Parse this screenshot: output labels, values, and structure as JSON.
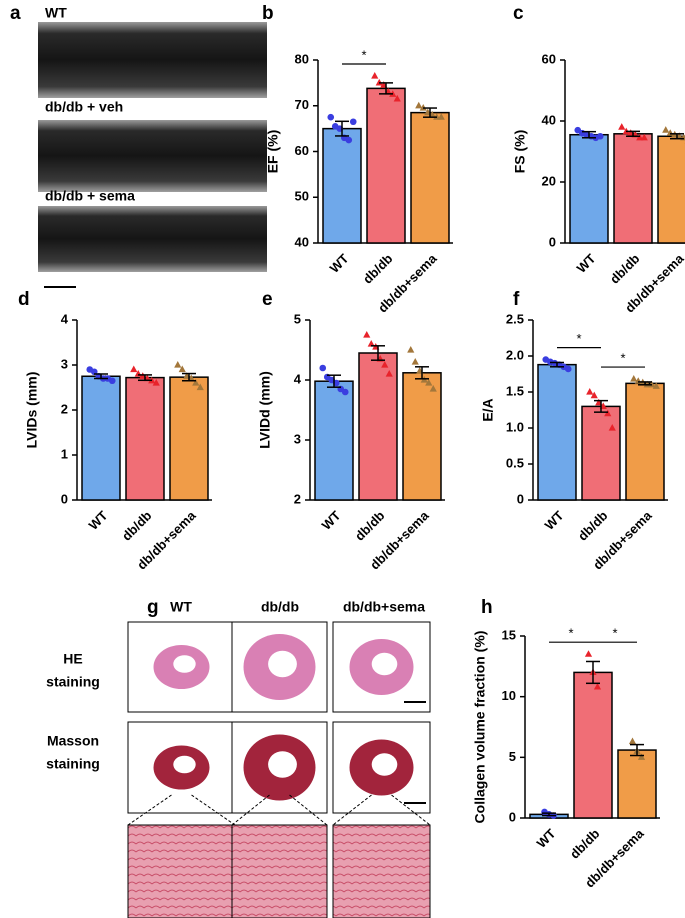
{
  "panel_a": {
    "letter": "a",
    "labels": [
      "WT",
      "db/db + veh",
      "db/db + sema"
    ]
  },
  "panel_g": {
    "letter": "g",
    "columns": [
      "WT",
      "db/db",
      "db/db+sema"
    ],
    "rows": [
      [
        "HE",
        "staining"
      ],
      [
        "Masson",
        "staining"
      ]
    ]
  },
  "chart_data": [
    {
      "type": "bar",
      "panel": "b",
      "ylabel": "EF (%)",
      "categories": [
        "WT",
        "db/db",
        "db/db+sema"
      ],
      "values": [
        65,
        73.8,
        68.5
      ],
      "errors": [
        1.6,
        1.2,
        1
      ],
      "points": [
        [
          67.5,
          65.5,
          65,
          63,
          62.5,
          66.5
        ],
        [
          76.5,
          75,
          74.5,
          73,
          72.5,
          71.5
        ],
        [
          70,
          69.5,
          68.5,
          68,
          67.5,
          67.5
        ]
      ],
      "colors": [
        "#6fa8ea",
        "#f06e76",
        "#f09c48"
      ],
      "point_colors": [
        "#3a3ee0",
        "#e8232b",
        "#a3773b"
      ],
      "ylim": [
        40,
        80
      ],
      "yticks": [
        40,
        50,
        60,
        70,
        80
      ],
      "significance": [
        {
          "pair": [
            "WT",
            "db/db"
          ],
          "label": "*"
        }
      ]
    },
    {
      "type": "bar",
      "panel": "c",
      "ylabel": "FS (%)",
      "categories": [
        "WT",
        "db/db",
        "db/db+sema"
      ],
      "values": [
        35.5,
        35.8,
        35
      ],
      "errors": [
        1,
        0.8,
        0.8
      ],
      "points": [
        [
          37,
          36,
          35.5,
          35,
          34.5,
          35
        ],
        [
          38,
          36.5,
          36,
          35.5,
          34.5,
          34.5
        ],
        [
          37,
          36,
          35.5,
          35,
          34.5,
          33.5
        ]
      ],
      "colors": [
        "#6fa8ea",
        "#f06e76",
        "#f09c48"
      ],
      "point_colors": [
        "#3a3ee0",
        "#e8232b",
        "#a3773b"
      ],
      "ylim": [
        0,
        60
      ],
      "yticks": [
        0,
        20,
        40,
        60
      ],
      "significance": []
    },
    {
      "type": "bar",
      "panel": "d",
      "ylabel": "LVIDs (mm)",
      "categories": [
        "WT",
        "db/db",
        "db/db+sema"
      ],
      "values": [
        2.75,
        2.72,
        2.73
      ],
      "errors": [
        0.05,
        0.06,
        0.08
      ],
      "points": [
        [
          2.9,
          2.85,
          2.75,
          2.7,
          2.7,
          2.65
        ],
        [
          2.9,
          2.8,
          2.75,
          2.7,
          2.65,
          2.6
        ],
        [
          3.0,
          2.9,
          2.75,
          2.7,
          2.6,
          2.5
        ]
      ],
      "colors": [
        "#6fa8ea",
        "#f06e76",
        "#f09c48"
      ],
      "point_colors": [
        "#3a3ee0",
        "#e8232b",
        "#a3773b"
      ],
      "ylim": [
        0,
        4
      ],
      "yticks": [
        0,
        1,
        2,
        3,
        4
      ],
      "significance": []
    },
    {
      "type": "bar",
      "panel": "e",
      "ylabel": "LVIDd (mm)",
      "categories": [
        "WT",
        "db/db",
        "db/db+sema"
      ],
      "values": [
        3.98,
        4.45,
        4.12
      ],
      "errors": [
        0.1,
        0.12,
        0.1
      ],
      "points": [
        [
          4.2,
          4.05,
          4.0,
          3.95,
          3.85,
          3.8
        ],
        [
          4.75,
          4.6,
          4.55,
          4.35,
          4.25,
          4.1
        ],
        [
          4.5,
          4.3,
          4.15,
          4.0,
          3.95,
          3.85
        ]
      ],
      "colors": [
        "#6fa8ea",
        "#f06e76",
        "#f09c48"
      ],
      "point_colors": [
        "#3a3ee0",
        "#e8232b",
        "#a3773b"
      ],
      "ylim": [
        2,
        5
      ],
      "yticks": [
        2,
        3,
        4,
        5
      ],
      "significance": []
    },
    {
      "type": "bar",
      "panel": "f",
      "ylabel": "E/A",
      "categories": [
        "WT",
        "db/db",
        "db/db+sema"
      ],
      "values": [
        1.88,
        1.3,
        1.62
      ],
      "errors": [
        0.03,
        0.08,
        0.02
      ],
      "points": [
        [
          1.95,
          1.92,
          1.9,
          1.88,
          1.85,
          1.82
        ],
        [
          1.5,
          1.45,
          1.35,
          1.3,
          1.2,
          1.0
        ],
        [
          1.68,
          1.65,
          1.63,
          1.6,
          1.6,
          1.58
        ]
      ],
      "colors": [
        "#6fa8ea",
        "#f06e76",
        "#f09c48"
      ],
      "point_colors": [
        "#3a3ee0",
        "#e8232b",
        "#a3773b"
      ],
      "ylim": [
        0,
        2.5
      ],
      "yticks": [
        0,
        0.5,
        {
          "value": 1,
          "label": "1.0"
        },
        1.5,
        {
          "value": 2,
          "label": "2.0"
        },
        2.5
      ],
      "significance": [
        {
          "pair": [
            "WT",
            "db/db"
          ],
          "label": "*"
        },
        {
          "pair": [
            "db/db",
            "db/db+sema"
          ],
          "label": "*"
        }
      ]
    },
    {
      "type": "bar",
      "panel": "h",
      "ylabel": "Collagen volume fraction (%)",
      "categories": [
        "WT",
        "db/db",
        "db/db+sema"
      ],
      "values": [
        0.3,
        12,
        5.6
      ],
      "errors": [
        0.1,
        0.9,
        0.45
      ],
      "points": [
        [
          0.5,
          0.3,
          0.2
        ],
        [
          13.5,
          12,
          10.8
        ],
        [
          6.3,
          5.5,
          5
        ]
      ],
      "colors": [
        "#6fa8ea",
        "#f06e76",
        "#f09c48"
      ],
      "point_colors": [
        "#3a3ee0",
        "#e8232b",
        "#a3773b"
      ],
      "ylim": [
        0,
        15
      ],
      "yticks": [
        0,
        5,
        10,
        15
      ],
      "significance": [
        {
          "pair": [
            "WT",
            "db/db"
          ],
          "label": "*"
        },
        {
          "pair": [
            "db/db",
            "db/db+sema"
          ],
          "label": "*"
        }
      ]
    }
  ]
}
